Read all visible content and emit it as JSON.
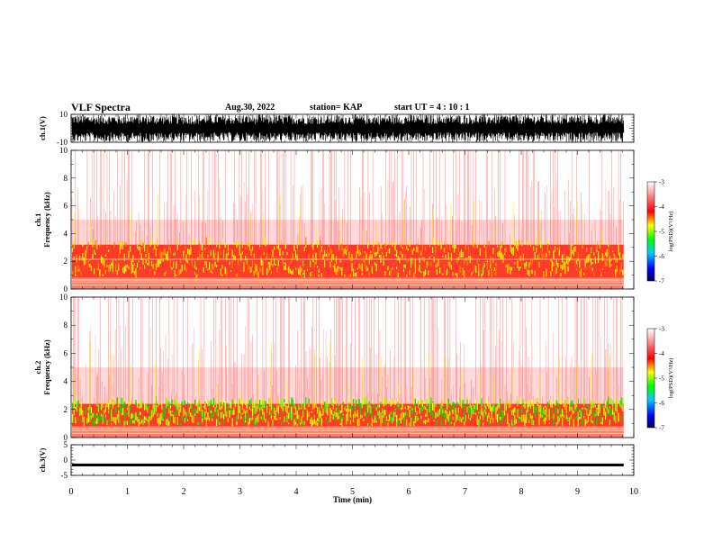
{
  "header": {
    "title": "VLF Spectra",
    "date": "Aug.30, 2022",
    "station": "station= KAP",
    "start": "start  UT =   4 : 10 : 1"
  },
  "chart_data": [
    {
      "type": "line",
      "ylabel": "ch.1(V)",
      "ylim": [
        -10,
        10
      ],
      "yticks": [
        "10",
        "-10"
      ],
      "xlim": [
        0,
        10
      ],
      "data_end_min": 9.82,
      "envelope": "dense waveform, amplitude mostly between -10 and 10 V (saturating)"
    },
    {
      "type": "heatmap",
      "ylabel": "ch.1\nFrequency  (kHz)",
      "ylim": [
        0,
        10
      ],
      "yticks": [
        "0",
        "2",
        "4",
        "6",
        "8",
        "10"
      ],
      "xlim": [
        0,
        10
      ],
      "data_end_min": 9.82,
      "colorbar": {
        "label": "log(PSD)(V²/Hz)",
        "range": [
          -7,
          -3
        ],
        "ticks": [
          "-3",
          "-4",
          "-5",
          "-6",
          "-7"
        ]
      },
      "features": {
        "lowband_khz": [
          0.8,
          3.2
        ],
        "line_khz": [
          0.3,
          0.5,
          0.65,
          2.15
        ]
      }
    },
    {
      "type": "heatmap",
      "ylabel": "ch.2\nFrequency  (kHz)",
      "ylim": [
        0,
        10
      ],
      "yticks": [
        "0",
        "2",
        "4",
        "6",
        "8",
        "10"
      ],
      "xlim": [
        0,
        10
      ],
      "data_end_min": 9.82,
      "colorbar": {
        "label": "log(PSD)(V²/Hz)",
        "range": [
          -7,
          -3
        ],
        "ticks": [
          "-3",
          "-4",
          "-5",
          "-6",
          "-7"
        ]
      },
      "features": {
        "lowband_khz": [
          0.8,
          2.4
        ],
        "line_khz": [
          0.3,
          0.5,
          0.65
        ]
      }
    },
    {
      "type": "line",
      "ylabel": "ch.3(V)",
      "ylim": [
        -5,
        5
      ],
      "yticks": [
        "5",
        "0",
        "-5"
      ],
      "xlim": [
        0,
        10
      ],
      "xlabel": "Time  (min)",
      "xticks": [
        "0",
        "1",
        "2",
        "3",
        "4",
        "5",
        "6",
        "7",
        "8",
        "9",
        "10"
      ],
      "data_end_min": 9.82,
      "level_v": -1.6,
      "thickness_v": 0.9
    }
  ],
  "colors": {
    "scale": [
      "#00007f",
      "#0000ff",
      "#00ff00",
      "#ffff00",
      "#ff0000",
      "#ffffff"
    ]
  }
}
